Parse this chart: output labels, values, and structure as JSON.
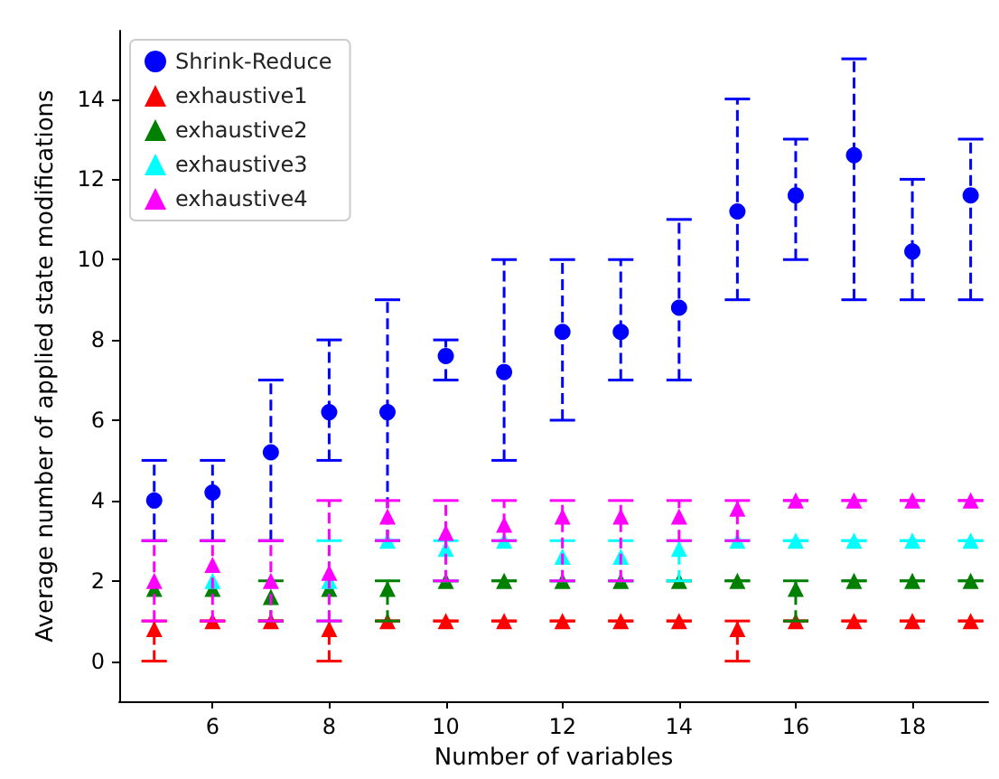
{
  "chart_data": {
    "type": "scatter",
    "xlabel": "Number of variables",
    "ylabel": "Average number of applied state modifications",
    "x": [
      5,
      6,
      7,
      8,
      9,
      10,
      11,
      12,
      13,
      14,
      15,
      16,
      17,
      18,
      19
    ],
    "xlim": [
      4.4,
      19.3
    ],
    "xticks": [
      6,
      8,
      10,
      12,
      14,
      16,
      18
    ],
    "ylim": [
      -1,
      15.7
    ],
    "yticks": [
      0,
      2,
      4,
      6,
      8,
      10,
      12,
      14
    ],
    "grid": false,
    "legend": "top left",
    "line_style": "dashed",
    "series": [
      {
        "name": "Shrink-Reduce",
        "color": "#0000ff",
        "marker": "circle",
        "values": [
          4.0,
          4.2,
          5.2,
          6.2,
          6.2,
          7.6,
          7.2,
          8.2,
          8.2,
          8.8,
          11.2,
          11.6,
          12.6,
          10.2,
          11.6
        ],
        "errors": [
          [
            3,
            5
          ],
          [
            3,
            5
          ],
          [
            3,
            7
          ],
          [
            5,
            8
          ],
          [
            3,
            9
          ],
          [
            7,
            8
          ],
          [
            5,
            10
          ],
          [
            6,
            10
          ],
          [
            7,
            10
          ],
          [
            7,
            11
          ],
          [
            9,
            14
          ],
          [
            10,
            13
          ],
          [
            9,
            15
          ],
          [
            9,
            12
          ],
          [
            9,
            13
          ]
        ]
      },
      {
        "name": "exhaustive1",
        "color": "#ff0000",
        "marker": "triangle",
        "values": [
          0.8,
          1,
          1,
          0.8,
          1,
          1,
          1,
          1,
          1,
          1,
          0.8,
          1,
          1,
          1,
          1
        ],
        "errors": [
          [
            0,
            1
          ],
          [
            1,
            1
          ],
          [
            1,
            1
          ],
          [
            0,
            1
          ],
          [
            1,
            1
          ],
          [
            1,
            1
          ],
          [
            1,
            1
          ],
          [
            1,
            1
          ],
          [
            1,
            1
          ],
          [
            1,
            1
          ],
          [
            0,
            1
          ],
          [
            1,
            1
          ],
          [
            1,
            1
          ],
          [
            1,
            1
          ],
          [
            1,
            1
          ]
        ]
      },
      {
        "name": "exhaustive2",
        "color": "#008000",
        "marker": "triangle",
        "values": [
          1.8,
          1.8,
          1.6,
          1.8,
          1.8,
          2,
          2,
          2,
          2,
          2,
          2,
          1.8,
          2,
          2,
          2
        ],
        "errors": [
          null,
          null,
          [
            1,
            2
          ],
          null,
          [
            1,
            2
          ],
          [
            2,
            2
          ],
          [
            2,
            2
          ],
          [
            2,
            2
          ],
          [
            2,
            2
          ],
          [
            2,
            2
          ],
          [
            2,
            2
          ],
          [
            1,
            2
          ],
          [
            2,
            2
          ],
          [
            2,
            2
          ],
          [
            2,
            2
          ]
        ]
      },
      {
        "name": "exhaustive3",
        "color": "#00ffff",
        "marker": "triangle",
        "values": [
          null,
          2,
          null,
          2,
          3,
          2.8,
          3,
          2.6,
          2.6,
          2.8,
          3,
          3,
          3,
          3,
          3
        ],
        "errors": [
          null,
          null,
          null,
          [
            1,
            3
          ],
          [
            3,
            3
          ],
          [
            2,
            3
          ],
          [
            3,
            3
          ],
          [
            2,
            3
          ],
          [
            2,
            3
          ],
          [
            2,
            3
          ],
          [
            3,
            3
          ],
          [
            3,
            3
          ],
          [
            3,
            3
          ],
          [
            3,
            3
          ],
          [
            3,
            3
          ]
        ]
      },
      {
        "name": "exhaustive4",
        "color": "#ff00ff",
        "marker": "triangle",
        "values": [
          2,
          2.4,
          2,
          2.2,
          3.6,
          3.2,
          3.4,
          3.6,
          3.6,
          3.6,
          3.8,
          4,
          4,
          4,
          4
        ],
        "errors": [
          [
            1,
            3
          ],
          [
            1,
            3
          ],
          [
            1,
            3
          ],
          [
            1,
            4
          ],
          [
            3,
            4
          ],
          [
            2,
            4
          ],
          [
            3,
            4
          ],
          [
            2,
            4
          ],
          [
            2,
            4
          ],
          [
            3,
            4
          ],
          [
            3,
            4
          ],
          [
            4,
            4
          ],
          [
            4,
            4
          ],
          [
            4,
            4
          ],
          [
            4,
            4
          ]
        ]
      }
    ]
  }
}
